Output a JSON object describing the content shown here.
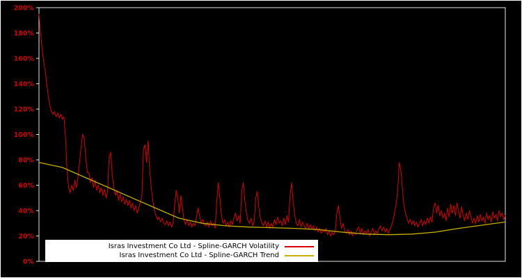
{
  "figure": {
    "background": "#000000",
    "border_color": "#ffffff"
  },
  "legend": {
    "entries": [
      {
        "label": "Isras Investment Co Ltd - Spline-GARCH Volatility",
        "color": "#dd0000"
      },
      {
        "label": "Isras Investment Co Ltd - Spline-GARCH Trend",
        "color": "#c8b000"
      }
    ]
  },
  "chart_data": {
    "type": "line",
    "title": "",
    "xlabel": "",
    "ylabel": "",
    "grid": false,
    "legend_position": "bottom-left",
    "axis_color": "#e6e6e6",
    "tick_label_color": "#cc0000",
    "ylim": [
      0,
      200
    ],
    "y_ticks": [
      0,
      20,
      40,
      60,
      80,
      100,
      120,
      140,
      160,
      180,
      200
    ],
    "y_tick_labels": [
      "0%",
      "20%",
      "40%",
      "60%",
      "80%",
      "100%",
      "120%",
      "140%",
      "160%",
      "180%",
      "200%"
    ],
    "x_tick_labels": [],
    "series": [
      {
        "name": "Isras Investment Co Ltd - Spline-GARCH Volatility",
        "color": "#dd0000",
        "width": 1,
        "unit": "%",
        "values": [
          195,
          180,
          168,
          158,
          150,
          140,
          130,
          123,
          118,
          116,
          118,
          114,
          117,
          113,
          116,
          112,
          114,
          98,
          72,
          58,
          54,
          60,
          56,
          64,
          58,
          66,
          78,
          90,
          100,
          97,
          82,
          70,
          70,
          62,
          66,
          58,
          64,
          56,
          60,
          54,
          58,
          52,
          57,
          50,
          55,
          82,
          86,
          68,
          58,
          52,
          56,
          48,
          53,
          47,
          51,
          45,
          49,
          44,
          48,
          42,
          46,
          40,
          44,
          38,
          42,
          47,
          52,
          88,
          92,
          78,
          95,
          72,
          58,
          48,
          40,
          36,
          33,
          35,
          31,
          34,
          30,
          29,
          32,
          28,
          31,
          27,
          30,
          44,
          56,
          50,
          38,
          52,
          42,
          32,
          29,
          33,
          28,
          31,
          27,
          30,
          28,
          35,
          42,
          36,
          30,
          33,
          29,
          28,
          31,
          27,
          32,
          28,
          30,
          26,
          48,
          62,
          50,
          36,
          30,
          33,
          28,
          31,
          27,
          32,
          29,
          34,
          38,
          32,
          36,
          30,
          55,
          62,
          48,
          38,
          32,
          30,
          34,
          28,
          31,
          50,
          55,
          42,
          34,
          30,
          28,
          32,
          27,
          31,
          26,
          30,
          27,
          33,
          29,
          35,
          30,
          32,
          28,
          34,
          29,
          36,
          31,
          52,
          62,
          46,
          36,
          30,
          28,
          33,
          27,
          31,
          28,
          26,
          30,
          25,
          29,
          26,
          28,
          24,
          27,
          23,
          26,
          22,
          25,
          23,
          26,
          21,
          24,
          20,
          23,
          21,
          24,
          38,
          44,
          34,
          26,
          30,
          24,
          22,
          25,
          21,
          24,
          20,
          23,
          21,
          25,
          27,
          22,
          26,
          21,
          24,
          22,
          25,
          20,
          23,
          26,
          21,
          24,
          22,
          26,
          28,
          24,
          27,
          23,
          26,
          22,
          25,
          28,
          32,
          38,
          45,
          55,
          78,
          72,
          58,
          44,
          38,
          34,
          30,
          33,
          29,
          32,
          28,
          31,
          27,
          30,
          33,
          28,
          32,
          29,
          34,
          30,
          35,
          31,
          42,
          46,
          38,
          44,
          36,
          40,
          34,
          38,
          32,
          42,
          35,
          45,
          38,
          44,
          36,
          46,
          40,
          34,
          43,
          36,
          32,
          38,
          33,
          40,
          35,
          30,
          34,
          30,
          36,
          31,
          37,
          32,
          35,
          30,
          38,
          33,
          36,
          31,
          39,
          34,
          37,
          32,
          40,
          35,
          38,
          33,
          36
        ]
      },
      {
        "name": "Isras Investment Co Ltd - Spline-GARCH Trend",
        "color": "#c8b000",
        "width": 1.3,
        "unit": "%",
        "values": [
          78,
          74,
          66,
          58,
          50,
          42,
          34,
          30,
          28,
          27,
          26.5,
          26,
          25,
          23,
          21.5,
          21,
          21.5,
          23,
          26,
          28.5,
          31
        ]
      }
    ]
  }
}
